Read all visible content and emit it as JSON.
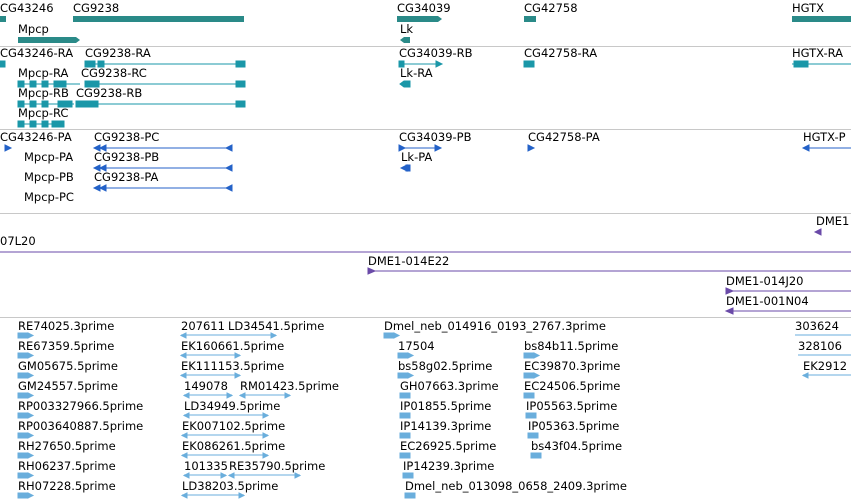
{
  "colors": {
    "gene": "#2a8a88",
    "transcript": "#1a97a8",
    "protein": "#2462c8",
    "clone": "#6a4aa8",
    "est": "#6aaedc",
    "divider": "#c8c8c8"
  },
  "tracks": {
    "genes": {
      "labels": [
        "CG43246",
        "CG9238",
        "CG34039",
        "CG42758",
        "HGTX",
        "Mpcp",
        "Lk"
      ]
    },
    "transcripts": {
      "labels": [
        "CG43246-RA",
        "CG9238-RA",
        "CG34039-RB",
        "CG42758-RA",
        "HGTX-RA",
        "Mpcp-RA",
        "CG9238-RC",
        "Lk-RA",
        "Mpcp-RB",
        "CG9238-RB",
        "Mpcp-RC"
      ]
    },
    "proteins": {
      "labels": [
        "CG43246-PA",
        "CG9238-PC",
        "CG34039-PB",
        "CG42758-PA",
        "HGTX-P",
        "Mpcp-PA",
        "CG9238-PB",
        "Lk-PA",
        "Mpcp-PB",
        "CG9238-PA",
        "Mpcp-PC"
      ]
    },
    "clones": {
      "labels": [
        "DME1",
        "07L20",
        "DME1-014E22",
        "DME1-014J20",
        "DME1-001N04"
      ]
    },
    "ests": {
      "labels": [
        "RE74025.3prime",
        "207611",
        "LD34541.5prime",
        "Dmel_neb_014916_0193_2767.3prime",
        "303624",
        "RE67359.5prime",
        "EK160661.5prime",
        "17504",
        "bs84b11.5prime",
        "328106",
        "GM05675.5prime",
        "EK111153.5prime",
        "bs58g02.5prime",
        "EC39870.3prime",
        "EK2912",
        "GM24557.5prime",
        "149078",
        "RM01423.5prime",
        "GH07663.3prime",
        "EC24506.5prime",
        "RP003327966.5prime",
        "LD34949.5prime",
        "IP01855.5prime",
        "IP05563.5prime",
        "RP003640887.5prime",
        "EK007102.5prime",
        "IP14139.3prime",
        "IP05363.5prime",
        "RH27650.5prime",
        "EK086261.5prime",
        "EC26925.5prime",
        "bs43f04.5prime",
        "RH06237.5prime",
        "101335",
        "RE35790.5prime",
        "IP14239.3prime",
        "RH07228.5prime",
        "LD38203.5prime",
        "Dmel_neb_013098_0658_2409.3prime"
      ]
    }
  }
}
